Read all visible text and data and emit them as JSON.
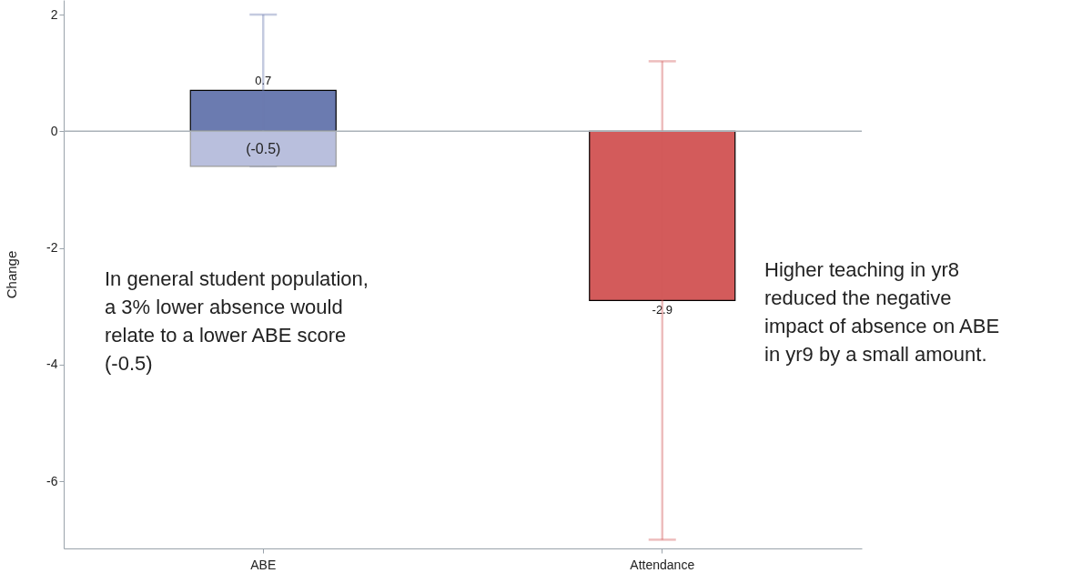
{
  "chart_data": {
    "type": "bar",
    "ylabel": "Change",
    "categories": [
      "ABE",
      "Attendance"
    ],
    "series": [
      {
        "colors": [
          "#6b7bb0",
          "#d35b5b"
        ],
        "values": [
          0.7,
          -2.9
        ],
        "errors": [
          [
            -0.6,
            2.0
          ],
          [
            -7.0,
            1.2
          ]
        ],
        "value_labels": [
          "0.7",
          "-2.9"
        ]
      },
      {
        "color": "#b9bfdd",
        "values": [
          -0.6,
          null
        ]
      }
    ],
    "ylim": [
      -7.15,
      2.25
    ],
    "yticks": [
      -6,
      -4,
      -2,
      0,
      2
    ],
    "grid": false,
    "stacked": true,
    "ref_lines": [
      {
        "axis": "y",
        "value": 0,
        "color": "#aab1b8"
      }
    ],
    "annotations": [
      {
        "text": "(-0.5)",
        "x": "ABE",
        "y": -0.3
      },
      "In general student population,\na 3% lower absence would\nrelate to a lower ABE score\n(-0.5)",
      "Higher teaching in yr8\nreduced the negative\nimpact of absence on ABE\nin yr9 by a small amount."
    ]
  }
}
